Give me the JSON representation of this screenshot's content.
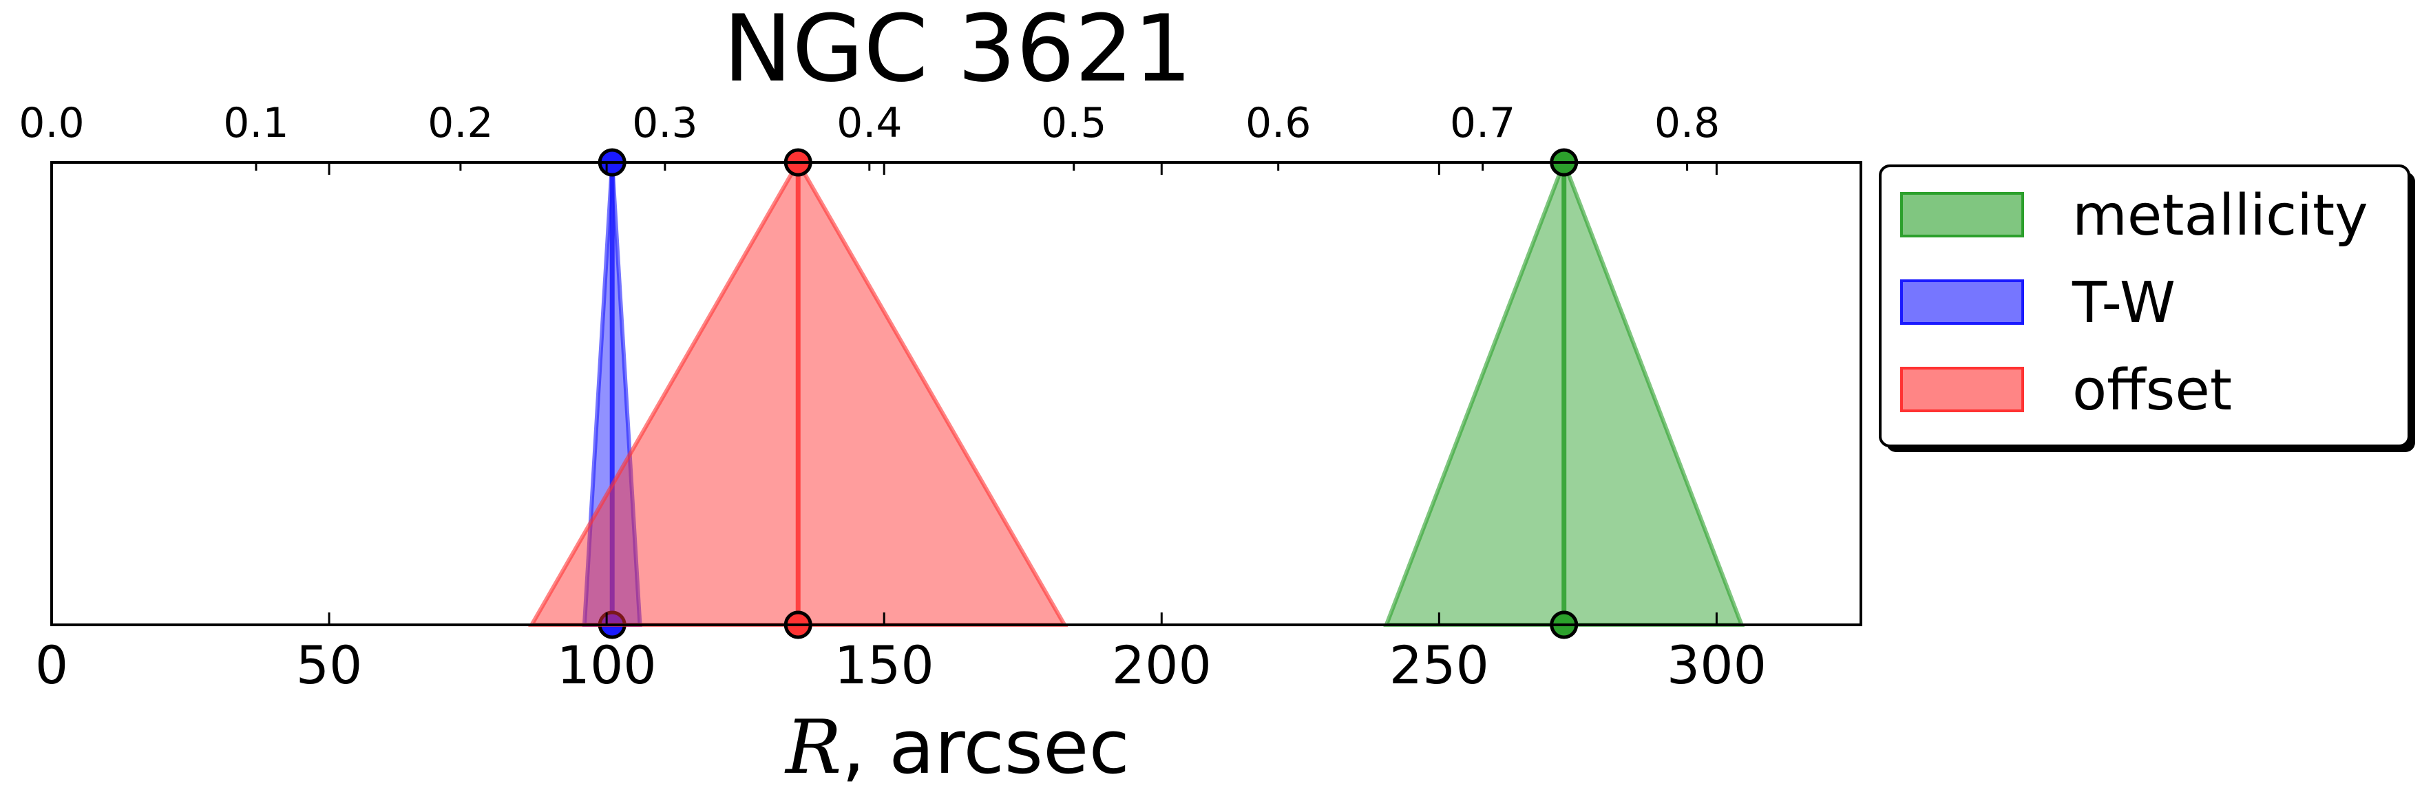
{
  "chart_data": {
    "type": "area",
    "title": "NGC 3621",
    "xlabel_symbol": "R",
    "xlabel_rest": ", arcsec",
    "xlim": [
      0,
      326
    ],
    "x_ticks": [
      0,
      50,
      100,
      150,
      200,
      250,
      300
    ],
    "top_axis": {
      "xlim": [
        0.0,
        0.885
      ],
      "ticks": [
        "0.0",
        "0.1",
        "0.2",
        "0.3",
        "0.4",
        "0.5",
        "0.6",
        "0.7",
        "0.8"
      ]
    },
    "grid": false,
    "legend_position": "right",
    "series": [
      {
        "name": "metallicity",
        "center": 272.5,
        "low": 240.5,
        "high": 304.5,
        "color": "#2ca02c"
      },
      {
        "name": "T-W",
        "center": 101,
        "low": 96,
        "high": 106,
        "color": "#1a1aff"
      },
      {
        "name": "offset",
        "center": 134.5,
        "low": 86.5,
        "high": 182.5,
        "color": "#ff3333"
      }
    ],
    "legend": [
      {
        "label": "metallicity",
        "color": "#2ca02c"
      },
      {
        "label": "T-W",
        "color": "#1a1aff"
      },
      {
        "label": "offset",
        "color": "#ff3333"
      }
    ]
  }
}
